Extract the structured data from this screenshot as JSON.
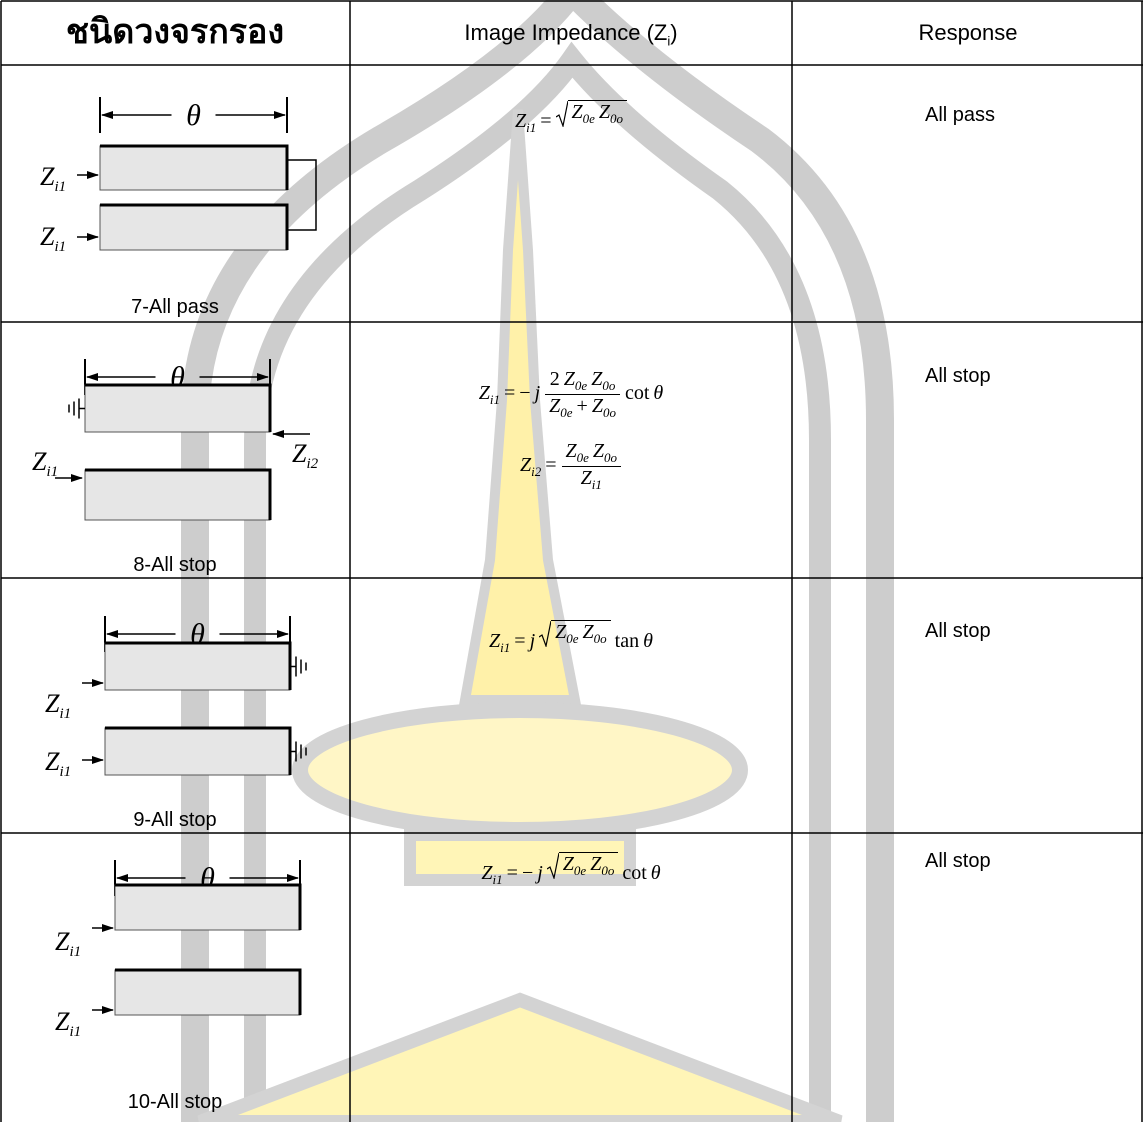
{
  "header": {
    "col1": "ชนิดวงจรกรอง",
    "col2": [
      "Image Impedance (Z",
      "i",
      ")"
    ],
    "col3": "Response"
  },
  "rows": [
    {
      "diagram": {
        "theta": "θ",
        "ports": [
          {
            "b": "Z",
            "s": "i1"
          },
          {
            "b": "Z",
            "s": "i1"
          }
        ],
        "caption": "7-All pass"
      },
      "formulas": [
        [
          {
            "b": "Z",
            "s": "i1"
          },
          "=",
          {
            "sqrt": [
              {
                "b": "Z",
                "s": "0e"
              },
              {
                "b": "Z",
                "s": "0o"
              }
            ]
          }
        ]
      ],
      "response": "All pass"
    },
    {
      "diagram": {
        "theta": "θ",
        "ports": [
          {
            "b": "Z",
            "s": "i1"
          },
          {
            "b": "Z",
            "s": "i2"
          }
        ],
        "caption": "8-All stop"
      },
      "formulas": [
        [
          {
            "b": "Z",
            "s": "i1"
          },
          "=",
          "−",
          {
            "i": "j"
          },
          {
            "frac": [
              [
                "2",
                {
                  "b": "Z",
                  "s": "0e"
                },
                {
                  "b": "Z",
                  "s": "0o"
                }
              ],
              [
                {
                  "b": "Z",
                  "s": "0e"
                },
                "+",
                {
                  "b": "Z",
                  "s": "0o"
                }
              ]
            ]
          },
          "cot",
          {
            "i": "θ"
          }
        ],
        [
          {
            "b": "Z",
            "s": "i2"
          },
          "=",
          {
            "frac": [
              [
                {
                  "b": "Z",
                  "s": "0e"
                },
                {
                  "b": "Z",
                  "s": "0o"
                }
              ],
              [
                {
                  "b": "Z",
                  "s": "i1"
                }
              ]
            ]
          }
        ]
      ],
      "response": "All stop"
    },
    {
      "diagram": {
        "theta": "θ",
        "ports": [
          {
            "b": "Z",
            "s": "i1"
          },
          {
            "b": "Z",
            "s": "i1"
          }
        ],
        "caption": "9-All stop"
      },
      "formulas": [
        [
          {
            "b": "Z",
            "s": "i1"
          },
          "=",
          {
            "i": "j"
          },
          {
            "sqrt": [
              {
                "b": "Z",
                "s": "0e"
              },
              {
                "b": "Z",
                "s": "0o"
              }
            ]
          },
          "tan",
          {
            "i": "θ"
          }
        ]
      ],
      "response": "All stop"
    },
    {
      "diagram": {
        "theta": "θ",
        "ports": [
          {
            "b": "Z",
            "s": "i1"
          },
          {
            "b": "Z",
            "s": "i1"
          }
        ],
        "caption": "10-All stop"
      },
      "formulas": [
        [
          {
            "b": "Z",
            "s": "i1"
          },
          "=",
          "−",
          {
            "i": "j"
          },
          {
            "sqrt": [
              {
                "b": "Z",
                "s": "0e"
              },
              {
                "b": "Z",
                "s": "0o"
              }
            ]
          },
          "cot",
          {
            "i": "θ"
          }
        ]
      ],
      "response": "All stop"
    }
  ]
}
